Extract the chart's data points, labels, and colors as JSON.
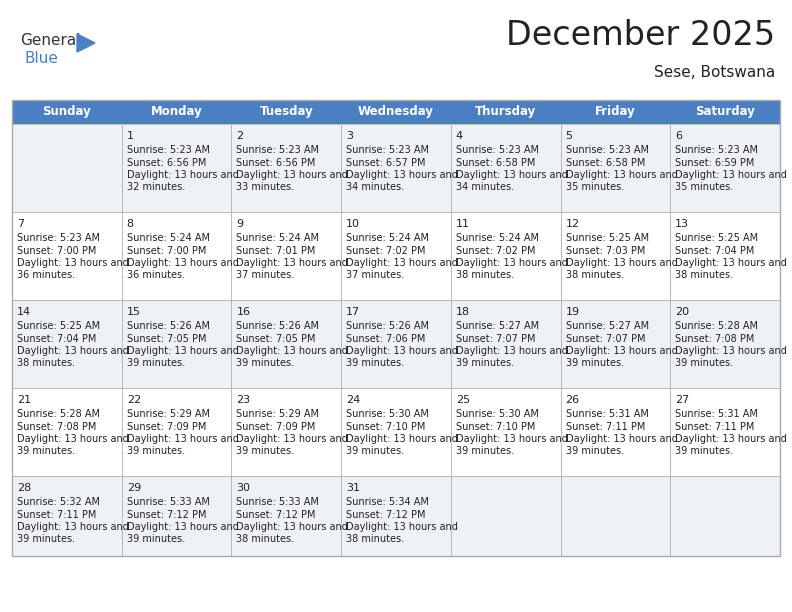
{
  "title": "December 2025",
  "subtitle": "Sese, Botswana",
  "header_color": "#4a7fc1",
  "header_text_color": "#ffffff",
  "days_of_week": [
    "Sunday",
    "Monday",
    "Tuesday",
    "Wednesday",
    "Thursday",
    "Friday",
    "Saturday"
  ],
  "row_colors": [
    "#eef2f7",
    "#ffffff"
  ],
  "grid_line_color": "#aaaaaa",
  "text_color": "#222222",
  "bg_color": "#ffffff",
  "logo_general_color": "#333333",
  "logo_blue_color": "#4a7fc1",
  "logo_triangle_color": "#4a7fc1",
  "calendar": [
    [
      {
        "day": "",
        "sunrise": "",
        "sunset": "",
        "daylight": ""
      },
      {
        "day": "1",
        "sunrise": "5:23 AM",
        "sunset": "6:56 PM",
        "daylight": "13 hours and 32 minutes."
      },
      {
        "day": "2",
        "sunrise": "5:23 AM",
        "sunset": "6:56 PM",
        "daylight": "13 hours and 33 minutes."
      },
      {
        "day": "3",
        "sunrise": "5:23 AM",
        "sunset": "6:57 PM",
        "daylight": "13 hours and 34 minutes."
      },
      {
        "day": "4",
        "sunrise": "5:23 AM",
        "sunset": "6:58 PM",
        "daylight": "13 hours and 34 minutes."
      },
      {
        "day": "5",
        "sunrise": "5:23 AM",
        "sunset": "6:58 PM",
        "daylight": "13 hours and 35 minutes."
      },
      {
        "day": "6",
        "sunrise": "5:23 AM",
        "sunset": "6:59 PM",
        "daylight": "13 hours and 35 minutes."
      }
    ],
    [
      {
        "day": "7",
        "sunrise": "5:23 AM",
        "sunset": "7:00 PM",
        "daylight": "13 hours and 36 minutes."
      },
      {
        "day": "8",
        "sunrise": "5:24 AM",
        "sunset": "7:00 PM",
        "daylight": "13 hours and 36 minutes."
      },
      {
        "day": "9",
        "sunrise": "5:24 AM",
        "sunset": "7:01 PM",
        "daylight": "13 hours and 37 minutes."
      },
      {
        "day": "10",
        "sunrise": "5:24 AM",
        "sunset": "7:02 PM",
        "daylight": "13 hours and 37 minutes."
      },
      {
        "day": "11",
        "sunrise": "5:24 AM",
        "sunset": "7:02 PM",
        "daylight": "13 hours and 38 minutes."
      },
      {
        "day": "12",
        "sunrise": "5:25 AM",
        "sunset": "7:03 PM",
        "daylight": "13 hours and 38 minutes."
      },
      {
        "day": "13",
        "sunrise": "5:25 AM",
        "sunset": "7:04 PM",
        "daylight": "13 hours and 38 minutes."
      }
    ],
    [
      {
        "day": "14",
        "sunrise": "5:25 AM",
        "sunset": "7:04 PM",
        "daylight": "13 hours and 38 minutes."
      },
      {
        "day": "15",
        "sunrise": "5:26 AM",
        "sunset": "7:05 PM",
        "daylight": "13 hours and 39 minutes."
      },
      {
        "day": "16",
        "sunrise": "5:26 AM",
        "sunset": "7:05 PM",
        "daylight": "13 hours and 39 minutes."
      },
      {
        "day": "17",
        "sunrise": "5:26 AM",
        "sunset": "7:06 PM",
        "daylight": "13 hours and 39 minutes."
      },
      {
        "day": "18",
        "sunrise": "5:27 AM",
        "sunset": "7:07 PM",
        "daylight": "13 hours and 39 minutes."
      },
      {
        "day": "19",
        "sunrise": "5:27 AM",
        "sunset": "7:07 PM",
        "daylight": "13 hours and 39 minutes."
      },
      {
        "day": "20",
        "sunrise": "5:28 AM",
        "sunset": "7:08 PM",
        "daylight": "13 hours and 39 minutes."
      }
    ],
    [
      {
        "day": "21",
        "sunrise": "5:28 AM",
        "sunset": "7:08 PM",
        "daylight": "13 hours and 39 minutes."
      },
      {
        "day": "22",
        "sunrise": "5:29 AM",
        "sunset": "7:09 PM",
        "daylight": "13 hours and 39 minutes."
      },
      {
        "day": "23",
        "sunrise": "5:29 AM",
        "sunset": "7:09 PM",
        "daylight": "13 hours and 39 minutes."
      },
      {
        "day": "24",
        "sunrise": "5:30 AM",
        "sunset": "7:10 PM",
        "daylight": "13 hours and 39 minutes."
      },
      {
        "day": "25",
        "sunrise": "5:30 AM",
        "sunset": "7:10 PM",
        "daylight": "13 hours and 39 minutes."
      },
      {
        "day": "26",
        "sunrise": "5:31 AM",
        "sunset": "7:11 PM",
        "daylight": "13 hours and 39 minutes."
      },
      {
        "day": "27",
        "sunrise": "5:31 AM",
        "sunset": "7:11 PM",
        "daylight": "13 hours and 39 minutes."
      }
    ],
    [
      {
        "day": "28",
        "sunrise": "5:32 AM",
        "sunset": "7:11 PM",
        "daylight": "13 hours and 39 minutes."
      },
      {
        "day": "29",
        "sunrise": "5:33 AM",
        "sunset": "7:12 PM",
        "daylight": "13 hours and 39 minutes."
      },
      {
        "day": "30",
        "sunrise": "5:33 AM",
        "sunset": "7:12 PM",
        "daylight": "13 hours and 38 minutes."
      },
      {
        "day": "31",
        "sunrise": "5:34 AM",
        "sunset": "7:12 PM",
        "daylight": "13 hours and 38 minutes."
      },
      {
        "day": "",
        "sunrise": "",
        "sunset": "",
        "daylight": ""
      },
      {
        "day": "",
        "sunrise": "",
        "sunset": "",
        "daylight": ""
      },
      {
        "day": "",
        "sunrise": "",
        "sunset": "",
        "daylight": ""
      }
    ]
  ]
}
